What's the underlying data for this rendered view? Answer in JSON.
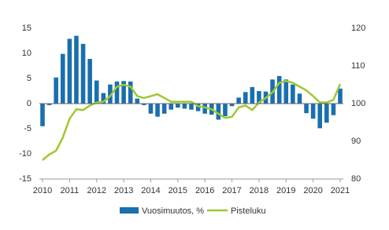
{
  "chart_data": {
    "type": "bar_line",
    "x": [
      2010,
      2010.25,
      2010.5,
      2010.75,
      2011,
      2011.25,
      2011.5,
      2011.75,
      2012,
      2012.25,
      2012.5,
      2012.75,
      2013,
      2013.25,
      2013.5,
      2013.75,
      2014,
      2014.25,
      2014.5,
      2014.75,
      2015,
      2015.25,
      2015.5,
      2015.75,
      2016,
      2016.25,
      2016.5,
      2016.75,
      2017,
      2017.25,
      2017.5,
      2017.75,
      2018,
      2018.25,
      2018.5,
      2018.75,
      2019,
      2019.25,
      2019.5,
      2019.75,
      2020,
      2020.25,
      2020.5,
      2020.75,
      2021
    ],
    "series": [
      {
        "name": "Vuosimuutos, %",
        "color": "#1a6fae",
        "values": [
          -4.5,
          -0.3,
          5.2,
          9.9,
          12.9,
          13.5,
          11.9,
          8.9,
          4.6,
          2.1,
          3.8,
          4.4,
          4.5,
          4.4,
          1.0,
          -0.3,
          -2.0,
          -2.6,
          -2.0,
          -1.2,
          -0.8,
          -1.0,
          -1.2,
          -1.5,
          -2.0,
          -2.2,
          -3.2,
          -2.5,
          -0.5,
          1.2,
          2.3,
          3.3,
          2.5,
          2.4,
          4.8,
          5.5,
          4.8,
          3.8,
          2.0,
          -1.9,
          -3.0,
          -4.9,
          -3.8,
          -2.3,
          3.0
        ]
      },
      {
        "name": "Pisteluku",
        "color": "#9dc832",
        "axis": "y2",
        "values": [
          85,
          86.5,
          87.5,
          91,
          96,
          98.5,
          98.3,
          99.5,
          100.3,
          100.5,
          102,
          104.5,
          105,
          104.5,
          102,
          101.5,
          102,
          102.5,
          101.5,
          100.5,
          100.5,
          100.5,
          100.5,
          99.3,
          99,
          98.5,
          97.3,
          96.2,
          96.5,
          99,
          99.5,
          98.3,
          100.3,
          101.5,
          103,
          105.5,
          106,
          105.5,
          104.5,
          103.5,
          102,
          100.3,
          100.3,
          101,
          105.2
        ]
      }
    ],
    "xlim": [
      2010,
      2021
    ],
    "xticks": [
      2010,
      2011,
      2012,
      2013,
      2014,
      2015,
      2016,
      2017,
      2018,
      2019,
      2020,
      2021
    ],
    "ylim": [
      -15,
      15
    ],
    "yticks": [
      -15,
      -10,
      -5,
      0,
      5,
      10,
      15
    ],
    "y2lim": [
      80,
      120
    ],
    "y2ticks": [
      80,
      90,
      100,
      110,
      120
    ]
  }
}
